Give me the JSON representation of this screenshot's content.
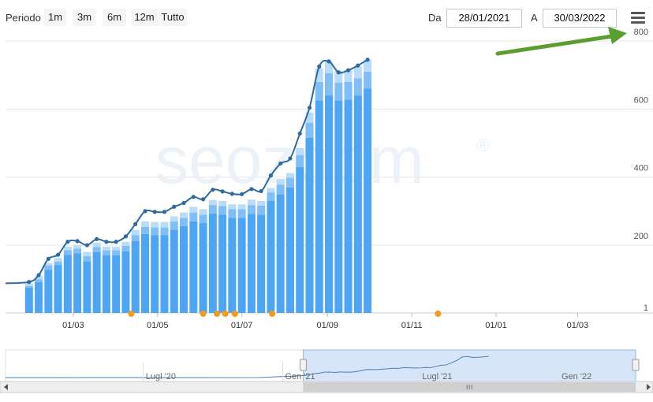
{
  "toolbar": {
    "period_label": "Periodo",
    "ranges": [
      "1m",
      "3m",
      "6m",
      "12m",
      "Tutto"
    ],
    "from_label": "Da",
    "from_value": "28/01/2021",
    "to_label": "A",
    "to_value": "30/03/2022",
    "menu_icon": "hamburger-menu-icon"
  },
  "watermark": {
    "text": "seozoom",
    "registered": "®"
  },
  "colors": {
    "bar_dark": "#4da6f5",
    "bar_mid": "#7fbef7",
    "bar_light": "#b9dcfa",
    "line": "#2c6aa0",
    "markers": "#f59b1a",
    "arrow": "#5a9e2f",
    "navigator_fill": "#d6e6f8"
  },
  "chart_data": {
    "type": "bar",
    "x": [
      "2021-01-28",
      "2021-02-04",
      "2021-02-11",
      "2021-02-18",
      "2021-02-25",
      "2021-03-04",
      "2021-03-11",
      "2021-03-18",
      "2021-03-25",
      "2021-04-01",
      "2021-04-08",
      "2021-04-15",
      "2021-04-22",
      "2021-04-29",
      "2021-05-06",
      "2021-05-13",
      "2021-05-20",
      "2021-05-27",
      "2021-06-03",
      "2021-06-10",
      "2021-06-17",
      "2021-06-24",
      "2021-07-01",
      "2021-07-08",
      "2021-07-15",
      "2021-07-22",
      "2021-07-29",
      "2021-08-05",
      "2021-08-12",
      "2021-08-19",
      "2021-08-26",
      "2021-09-02",
      "2021-09-09",
      "2021-09-16",
      "2021-09-23",
      "2021-09-30"
    ],
    "series": [
      {
        "values": [
          75,
          92,
          128,
          142,
          172,
          176,
          153,
          180,
          170,
          170,
          182,
          212,
          233,
          230,
          230,
          246,
          256,
          270,
          265,
          293,
          290,
          280,
          280,
          292,
          290,
          330,
          350,
          370,
          430,
          516,
          625,
          640,
          625,
          628,
          640,
          660
        ]
      },
      {
        "values": [
          80,
          100,
          140,
          152,
          185,
          190,
          168,
          195,
          185,
          185,
          198,
          230,
          254,
          252,
          252,
          270,
          280,
          296,
          290,
          318,
          315,
          306,
          306,
          318,
          316,
          355,
          378,
          398,
          465,
          560,
          680,
          705,
          678,
          680,
          690,
          710
        ]
      },
      {
        "values": [
          88,
          110,
          148,
          162,
          196,
          200,
          180,
          207,
          196,
          196,
          210,
          245,
          270,
          268,
          268,
          285,
          296,
          313,
          306,
          333,
          330,
          320,
          320,
          334,
          330,
          368,
          394,
          412,
          485,
          590,
          720,
          740,
          712,
          714,
          725,
          745
        ]
      }
    ],
    "line": [
      92,
      112,
      160,
      172,
      210,
      212,
      200,
      218,
      210,
      210,
      226,
      262,
      300,
      298,
      298,
      313,
      324,
      342,
      335,
      363,
      358,
      351,
      350,
      365,
      359,
      405,
      440,
      455,
      528,
      604,
      725,
      740,
      708,
      714,
      728,
      745
    ],
    "x_ticks": [
      "01/03",
      "01/05",
      "01/07",
      "01/09",
      "01/11",
      "01/01",
      "01/03"
    ],
    "y_ticks": [
      "800",
      "600",
      "400",
      "200",
      "1"
    ],
    "ylim": [
      1,
      800
    ],
    "grid": true,
    "event_markers_x": [
      "2021-04-12",
      "2021-06-03",
      "2021-06-13",
      "2021-06-19",
      "2021-06-26",
      "2021-07-23",
      "2021-11-20"
    ],
    "navigator": {
      "labels": [
        "Lugl '20",
        "Gen '21",
        "Lugl '21",
        "Gen '22"
      ]
    }
  }
}
